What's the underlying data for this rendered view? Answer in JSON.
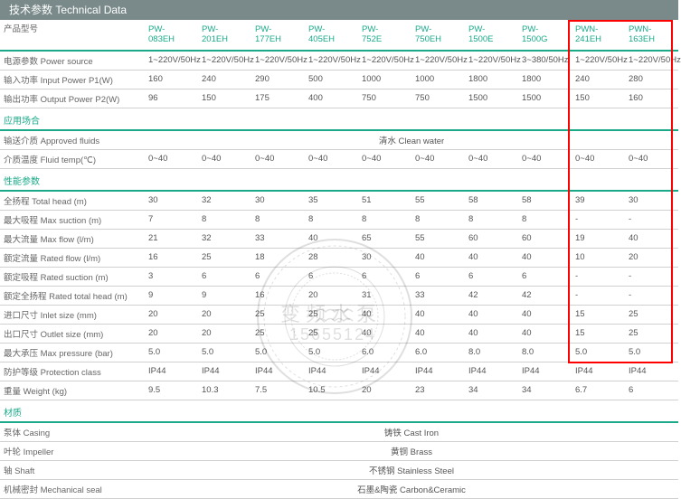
{
  "colors": {
    "header_bg": "#7a8a8a",
    "header_text": "#ffffff",
    "accent": "#1aaa8a",
    "border": "#d0d0d0",
    "text": "#555555",
    "highlight_border": "#ff0000"
  },
  "header": {
    "title": "技术参数 Technical Data"
  },
  "columns": {
    "label": "产品型号",
    "models": [
      "PW-083EH",
      "PW-201EH",
      "PW-177EH",
      "PW-405EH",
      "PW-752E",
      "PW-750EH",
      "PW-1500E",
      "PW-1500G",
      "PWN-241EH",
      "PWN-163EH"
    ]
  },
  "sections": [
    {
      "rows": [
        {
          "label": "电源参数 Power source",
          "cells": [
            "1~220V/50Hz",
            "1~220V/50Hz",
            "1~220V/50Hz",
            "1~220V/50Hz",
            "1~220V/50Hz",
            "1~220V/50Hz",
            "1~220V/50Hz",
            "3~380/50Hz",
            "1~220V/50Hz",
            "1~220V/50Hz"
          ]
        },
        {
          "label": "输入功率 Input Power P1(W)",
          "cells": [
            "160",
            "240",
            "290",
            "500",
            "1000",
            "1000",
            "1800",
            "1800",
            "240",
            "280"
          ]
        },
        {
          "label": "输出功率 Output Power P2(W)",
          "cells": [
            "96",
            "150",
            "175",
            "400",
            "750",
            "750",
            "1500",
            "1500",
            "150",
            "160"
          ]
        }
      ]
    },
    {
      "title": "应用场合",
      "rows": [
        {
          "label": "输送介质 Approved fluids",
          "merged": "清水 Clean water"
        },
        {
          "label": "介质温度 Fluid temp(℃)",
          "cells": [
            "0~40",
            "0~40",
            "0~40",
            "0~40",
            "0~40",
            "0~40",
            "0~40",
            "0~40",
            "0~40",
            "0~40"
          ]
        }
      ]
    },
    {
      "title": "性能参数",
      "rows": [
        {
          "label": "全扬程 Total head (m)",
          "cells": [
            "30",
            "32",
            "30",
            "35",
            "51",
            "55",
            "58",
            "58",
            "39",
            "30"
          ]
        },
        {
          "label": "最大吸程 Max suction (m)",
          "cells": [
            "7",
            "8",
            "8",
            "8",
            "8",
            "8",
            "8",
            "8",
            "-",
            "-"
          ]
        },
        {
          "label": "最大流量 Max flow (l/m)",
          "cells": [
            "21",
            "32",
            "33",
            "40",
            "65",
            "55",
            "60",
            "60",
            "19",
            "40"
          ]
        },
        {
          "label": "额定流量 Rated flow (l/m)",
          "cells": [
            "16",
            "25",
            "18",
            "28",
            "30",
            "40",
            "40",
            "40",
            "10",
            "20"
          ]
        },
        {
          "label": "额定吸程 Rated suction (m)",
          "cells": [
            "3",
            "6",
            "6",
            "6",
            "6",
            "6",
            "6",
            "6",
            "-",
            "-"
          ]
        },
        {
          "label": "额定全扬程 Rated total head (m)",
          "cells": [
            "9",
            "9",
            "16",
            "20",
            "31",
            "33",
            "42",
            "42",
            "-",
            "-"
          ]
        },
        {
          "label": "进口尺寸 Inlet size (mm)",
          "cells": [
            "20",
            "20",
            "25",
            "25",
            "40",
            "40",
            "40",
            "40",
            "15",
            "25"
          ]
        },
        {
          "label": "出口尺寸 Outlet size (mm)",
          "cells": [
            "20",
            "20",
            "25",
            "25",
            "40",
            "40",
            "40",
            "40",
            "15",
            "25"
          ]
        },
        {
          "label": "最大承压 Max pressure (bar)",
          "cells": [
            "5.0",
            "5.0",
            "5.0",
            "5.0",
            "6.0",
            "6.0",
            "8.0",
            "8.0",
            "5.0",
            "5.0"
          ]
        },
        {
          "label": "防护等级 Protection class",
          "cells": [
            "IP44",
            "IP44",
            "IP44",
            "IP44",
            "IP44",
            "IP44",
            "IP44",
            "IP44",
            "IP44",
            "IP44"
          ]
        },
        {
          "label": "重量 Weight (kg)",
          "cells": [
            "9.5",
            "10.3",
            "7.5",
            "10.5",
            "20",
            "23",
            "34",
            "34",
            "6.7",
            "6"
          ]
        }
      ]
    },
    {
      "title": "材质",
      "rows": [
        {
          "label": "泵体 Casing",
          "merged": "铸铁 Cast Iron"
        },
        {
          "label": "叶轮 Impeller",
          "merged": "黄铜 Brass"
        },
        {
          "label": "轴 Shaft",
          "merged": "不锈钢 Stainless Steel"
        },
        {
          "label": "机械密封 Mechanical seal",
          "merged": "石墨&陶瓷 Carbon&Ceramic"
        }
      ]
    }
  ],
  "watermark": {
    "line1": "变频水泵",
    "line2": "15655124"
  }
}
